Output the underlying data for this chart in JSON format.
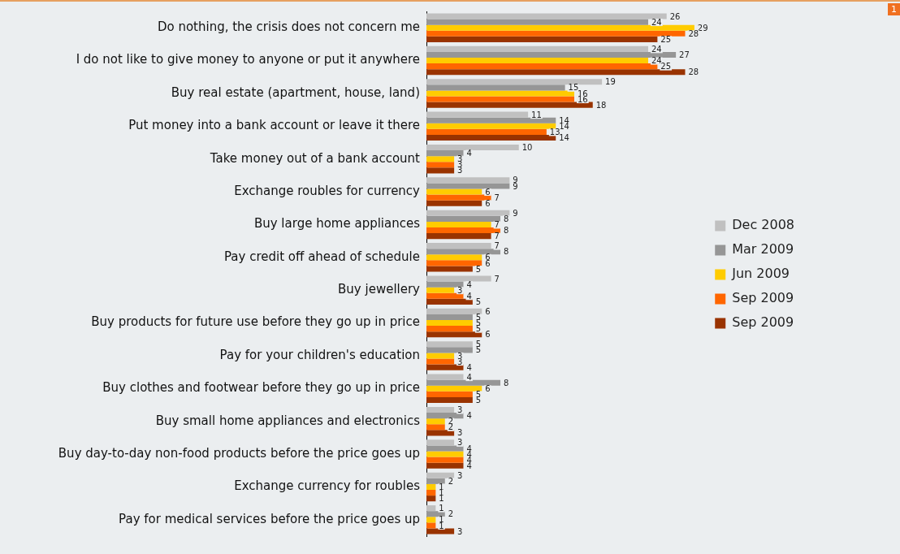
{
  "chart_data": {
    "type": "bar",
    "orientation": "horizontal",
    "data_labels": true,
    "legend": "right",
    "tick_labels": "y",
    "categories": [
      "Do nothing, the crisis does not concern me",
      "I do not like to give money to anyone or put it anywhere",
      "Buy real estate (apartment, house, land)",
      "Put money into a bank account or leave it there",
      "Take money out of a bank account",
      "Exchange roubles for currency",
      "Buy large home appliances",
      "Pay credit off ahead of schedule",
      "Buy jewellery",
      "Buy products for future use before they go up in price",
      "Pay for your children's education",
      "Buy clothes and footwear before they go up in price",
      "Buy small home appliances and electronics",
      "Buy day-to-day non-food products before the price goes up",
      "Exchange currency for roubles",
      "Pay for medical services before the price goes up"
    ],
    "series": [
      {
        "name": "Dec 2008",
        "color": "#c0c0c0",
        "values": [
          26,
          24,
          19,
          11,
          10,
          9,
          9,
          7,
          7,
          6,
          5,
          4,
          3,
          3,
          3,
          1
        ]
      },
      {
        "name": "Mar 2009",
        "color": "#969696",
        "values": [
          24,
          27,
          15,
          14,
          4,
          9,
          8,
          8,
          4,
          5,
          5,
          8,
          4,
          4,
          2,
          2
        ]
      },
      {
        "name": "Jun 2009",
        "color": "#ffcc00",
        "values": [
          29,
          24,
          16,
          14,
          3,
          6,
          7,
          6,
          3,
          5,
          3,
          6,
          2,
          4,
          1,
          1
        ]
      },
      {
        "name": "Sep 2009",
        "color": "#ff6600",
        "values": [
          28,
          25,
          16,
          13,
          3,
          7,
          8,
          6,
          4,
          5,
          3,
          5,
          2,
          4,
          1,
          1
        ]
      },
      {
        "name": "Sep 2009",
        "color": "#993300",
        "values": [
          25,
          28,
          18,
          14,
          3,
          6,
          7,
          5,
          5,
          6,
          4,
          5,
          3,
          4,
          1,
          3
        ]
      }
    ],
    "annotations": [
      "1"
    ]
  }
}
